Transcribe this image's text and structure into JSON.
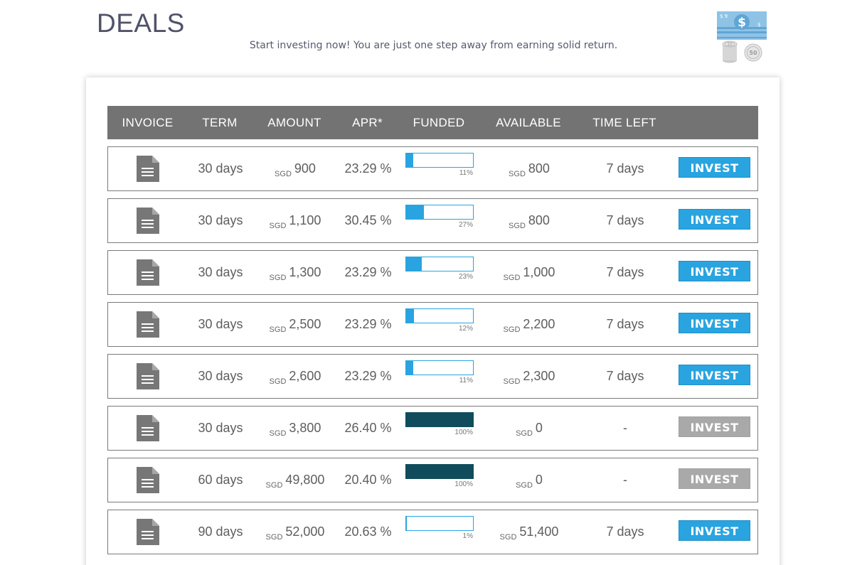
{
  "header": {
    "title": "DEALS",
    "subtitle": "Start investing now! You are just one step away from earning solid return."
  },
  "table": {
    "columns": [
      "INVOICE",
      "TERM",
      "AMOUNT",
      "APR*",
      "FUNDED",
      "AVAILABLE",
      "TIME LEFT"
    ],
    "currency": "SGD",
    "button_label": "INVEST",
    "rows": [
      {
        "term": "30 days",
        "amount": "900",
        "apr": "23.29 %",
        "funded": 11,
        "funded_label": "11%",
        "available": "800",
        "time_left": "7 days",
        "active": true
      },
      {
        "term": "30 days",
        "amount": "1,100",
        "apr": "30.45 %",
        "funded": 27,
        "funded_label": "27%",
        "available": "800",
        "time_left": "7 days",
        "active": true
      },
      {
        "term": "30 days",
        "amount": "1,300",
        "apr": "23.29 %",
        "funded": 23,
        "funded_label": "23%",
        "available": "1,000",
        "time_left": "7 days",
        "active": true
      },
      {
        "term": "30 days",
        "amount": "2,500",
        "apr": "23.29 %",
        "funded": 12,
        "funded_label": "12%",
        "available": "2,200",
        "time_left": "7 days",
        "active": true
      },
      {
        "term": "30 days",
        "amount": "2,600",
        "apr": "23.29 %",
        "funded": 11,
        "funded_label": "11%",
        "available": "2,300",
        "time_left": "7 days",
        "active": true
      },
      {
        "term": "30 days",
        "amount": "3,800",
        "apr": "26.40 %",
        "funded": 100,
        "funded_label": "100%",
        "available": "0",
        "time_left": "-",
        "active": false
      },
      {
        "term": "60 days",
        "amount": "49,800",
        "apr": "20.40 %",
        "funded": 100,
        "funded_label": "100%",
        "available": "0",
        "time_left": "-",
        "active": false
      },
      {
        "term": "90 days",
        "amount": "52,000",
        "apr": "20.63 %",
        "funded": 1,
        "funded_label": "1%",
        "available": "51,400",
        "time_left": "7 days",
        "active": true
      }
    ]
  },
  "colors": {
    "accent": "#29a4e0",
    "funded_full": "#114c5c",
    "header_bg": "#737373",
    "disabled": "#a9a9a9"
  }
}
